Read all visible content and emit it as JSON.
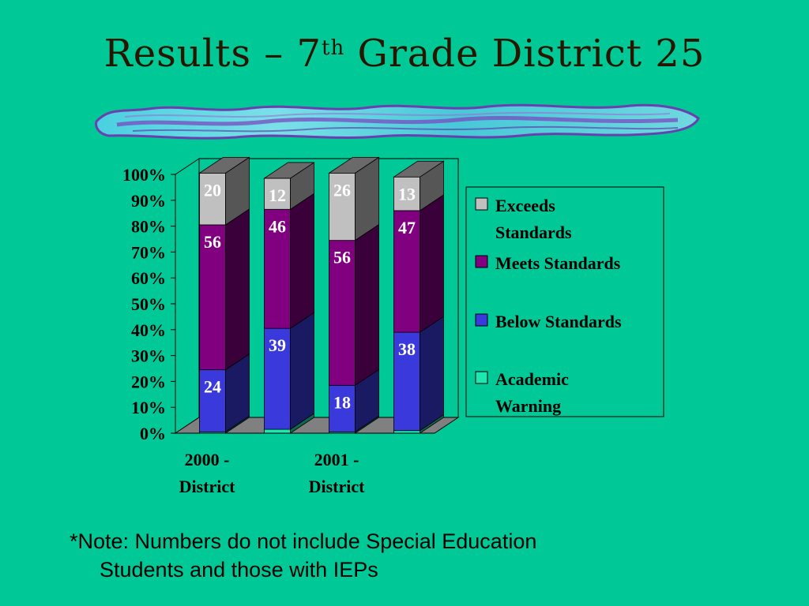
{
  "title": {
    "main": "Results – 7",
    "superscript": "th",
    "rest": " Grade District 25"
  },
  "footnote": {
    "line1": "*Note: Numbers do not include Special Education",
    "line2": "Students and those with IEPs"
  },
  "chart_data": {
    "type": "bar",
    "stacked": true,
    "percent_stacked": true,
    "three_d": true,
    "y_tick_labels": [
      "0%",
      "10%",
      "20%",
      "30%",
      "40%",
      "50%",
      "60%",
      "70%",
      "80%",
      "90%",
      "100%"
    ],
    "ylim": [
      0,
      100
    ],
    "categories": [
      "2000 - District",
      "",
      "2001 - District",
      ""
    ],
    "category_labels_shown": [
      [
        "2000 -",
        "District"
      ],
      [
        "2001 -",
        "District"
      ]
    ],
    "series": [
      {
        "name": "Academic Warning",
        "color": "#1ee8b0",
        "values": [
          0.5,
          1.5,
          0.5,
          1.0
        ],
        "labels": [
          "",
          "",
          "",
          ""
        ]
      },
      {
        "name": "Below Standards",
        "color": "#3a3adc",
        "values": [
          24,
          39,
          18,
          38
        ],
        "labels": [
          "24",
          "39",
          "18",
          "38"
        ]
      },
      {
        "name": "Meets Standards",
        "color": "#800080",
        "values": [
          56,
          46,
          56,
          47
        ],
        "labels": [
          "56",
          "46",
          "56",
          "47"
        ]
      },
      {
        "name": "Exceeds Standards",
        "color": "#c0c0c0",
        "values": [
          20,
          12,
          26,
          13
        ],
        "labels": [
          "20",
          "12",
          "26",
          "13"
        ]
      }
    ],
    "legend": {
      "placement": "right",
      "entries": [
        {
          "lines": [
            "Exceeds",
            "Standards"
          ],
          "color": "#c0c0c0"
        },
        {
          "lines": [
            "Meets Standards"
          ],
          "color": "#800080"
        },
        {
          "lines": [
            "Below Standards"
          ],
          "color": "#3a3adc"
        },
        {
          "lines": [
            "Academic",
            "Warning"
          ],
          "color": "#1ee8b0"
        }
      ]
    },
    "label_colors": {
      "light": "#ffffff",
      "dark": "#000000"
    },
    "grid": false
  }
}
